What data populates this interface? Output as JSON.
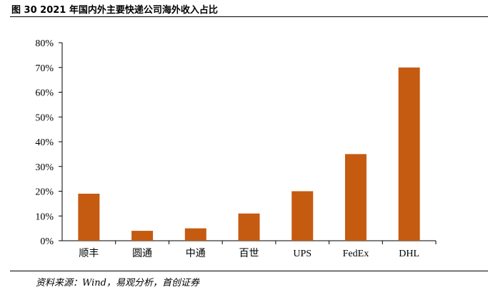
{
  "figure": {
    "title": "图 30 2021 年国内外主要快递公司海外收入占比",
    "source": "资料来源：Wind，易观分析，首创证券"
  },
  "colors": {
    "bar": "#C55A11",
    "axis": "#000000"
  },
  "chart_data": {
    "type": "bar",
    "categories": [
      "顺丰",
      "圆通",
      "中通",
      "百世",
      "UPS",
      "FedEx",
      "DHL"
    ],
    "values": [
      19,
      4,
      5,
      11,
      20,
      35,
      70
    ],
    "ylim": [
      0,
      80
    ],
    "yticks": [
      0,
      10,
      20,
      30,
      40,
      50,
      60,
      70,
      80
    ],
    "ytick_labels": [
      "0%",
      "10%",
      "20%",
      "30%",
      "40%",
      "50%",
      "60%",
      "70%",
      "80%"
    ],
    "grid": false,
    "legend": "none"
  }
}
